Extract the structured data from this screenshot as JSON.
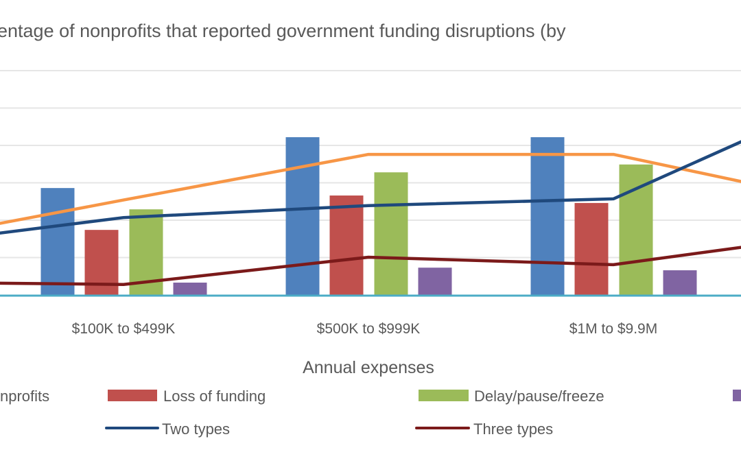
{
  "chart_data": {
    "type": "bar",
    "title": "entage of nonprofits that reported government funding disruptions (by",
    "xlabel": "Annual expenses",
    "ylabel": "",
    "ylim": [
      0,
      60
    ],
    "y_gridlines": [
      10,
      20,
      30,
      40,
      50,
      60
    ],
    "grid": true,
    "legend_placement": "bottom",
    "categories": [
      "",
      "$100K to $499K",
      "$500K to $999K",
      "$1M to $9.9M",
      ""
    ],
    "bar_series": [
      {
        "name": "nprofits",
        "color": "#4f81bd",
        "values": [
          null,
          28.6,
          42.2,
          42.2,
          null
        ]
      },
      {
        "name": "Loss of funding",
        "color": "#c0504d",
        "values": [
          null,
          17.4,
          26.6,
          24.6,
          null
        ]
      },
      {
        "name": "Delay/pause/freeze",
        "color": "#9bbb59",
        "values": [
          null,
          22.9,
          32.8,
          34.9,
          null
        ]
      },
      {
        "name": "",
        "color": "#8064a2",
        "values": [
          null,
          3.3,
          7.3,
          6.6,
          null
        ]
      }
    ],
    "line_series": [
      {
        "name": "",
        "color": "#f79646",
        "values": [
          13,
          25.4,
          37.6,
          37.6,
          23.7
        ]
      },
      {
        "name": "Two types",
        "color": "#1f497d",
        "values": [
          12.5,
          20.7,
          23.9,
          25.7,
          55
        ]
      },
      {
        "name": "Three types",
        "color": "#7b1a1a",
        "values": [
          3.5,
          2.8,
          10.1,
          8.1,
          17
        ]
      }
    ],
    "axis_color": "#4bacc6",
    "grid_color": "#e6e6e6"
  }
}
